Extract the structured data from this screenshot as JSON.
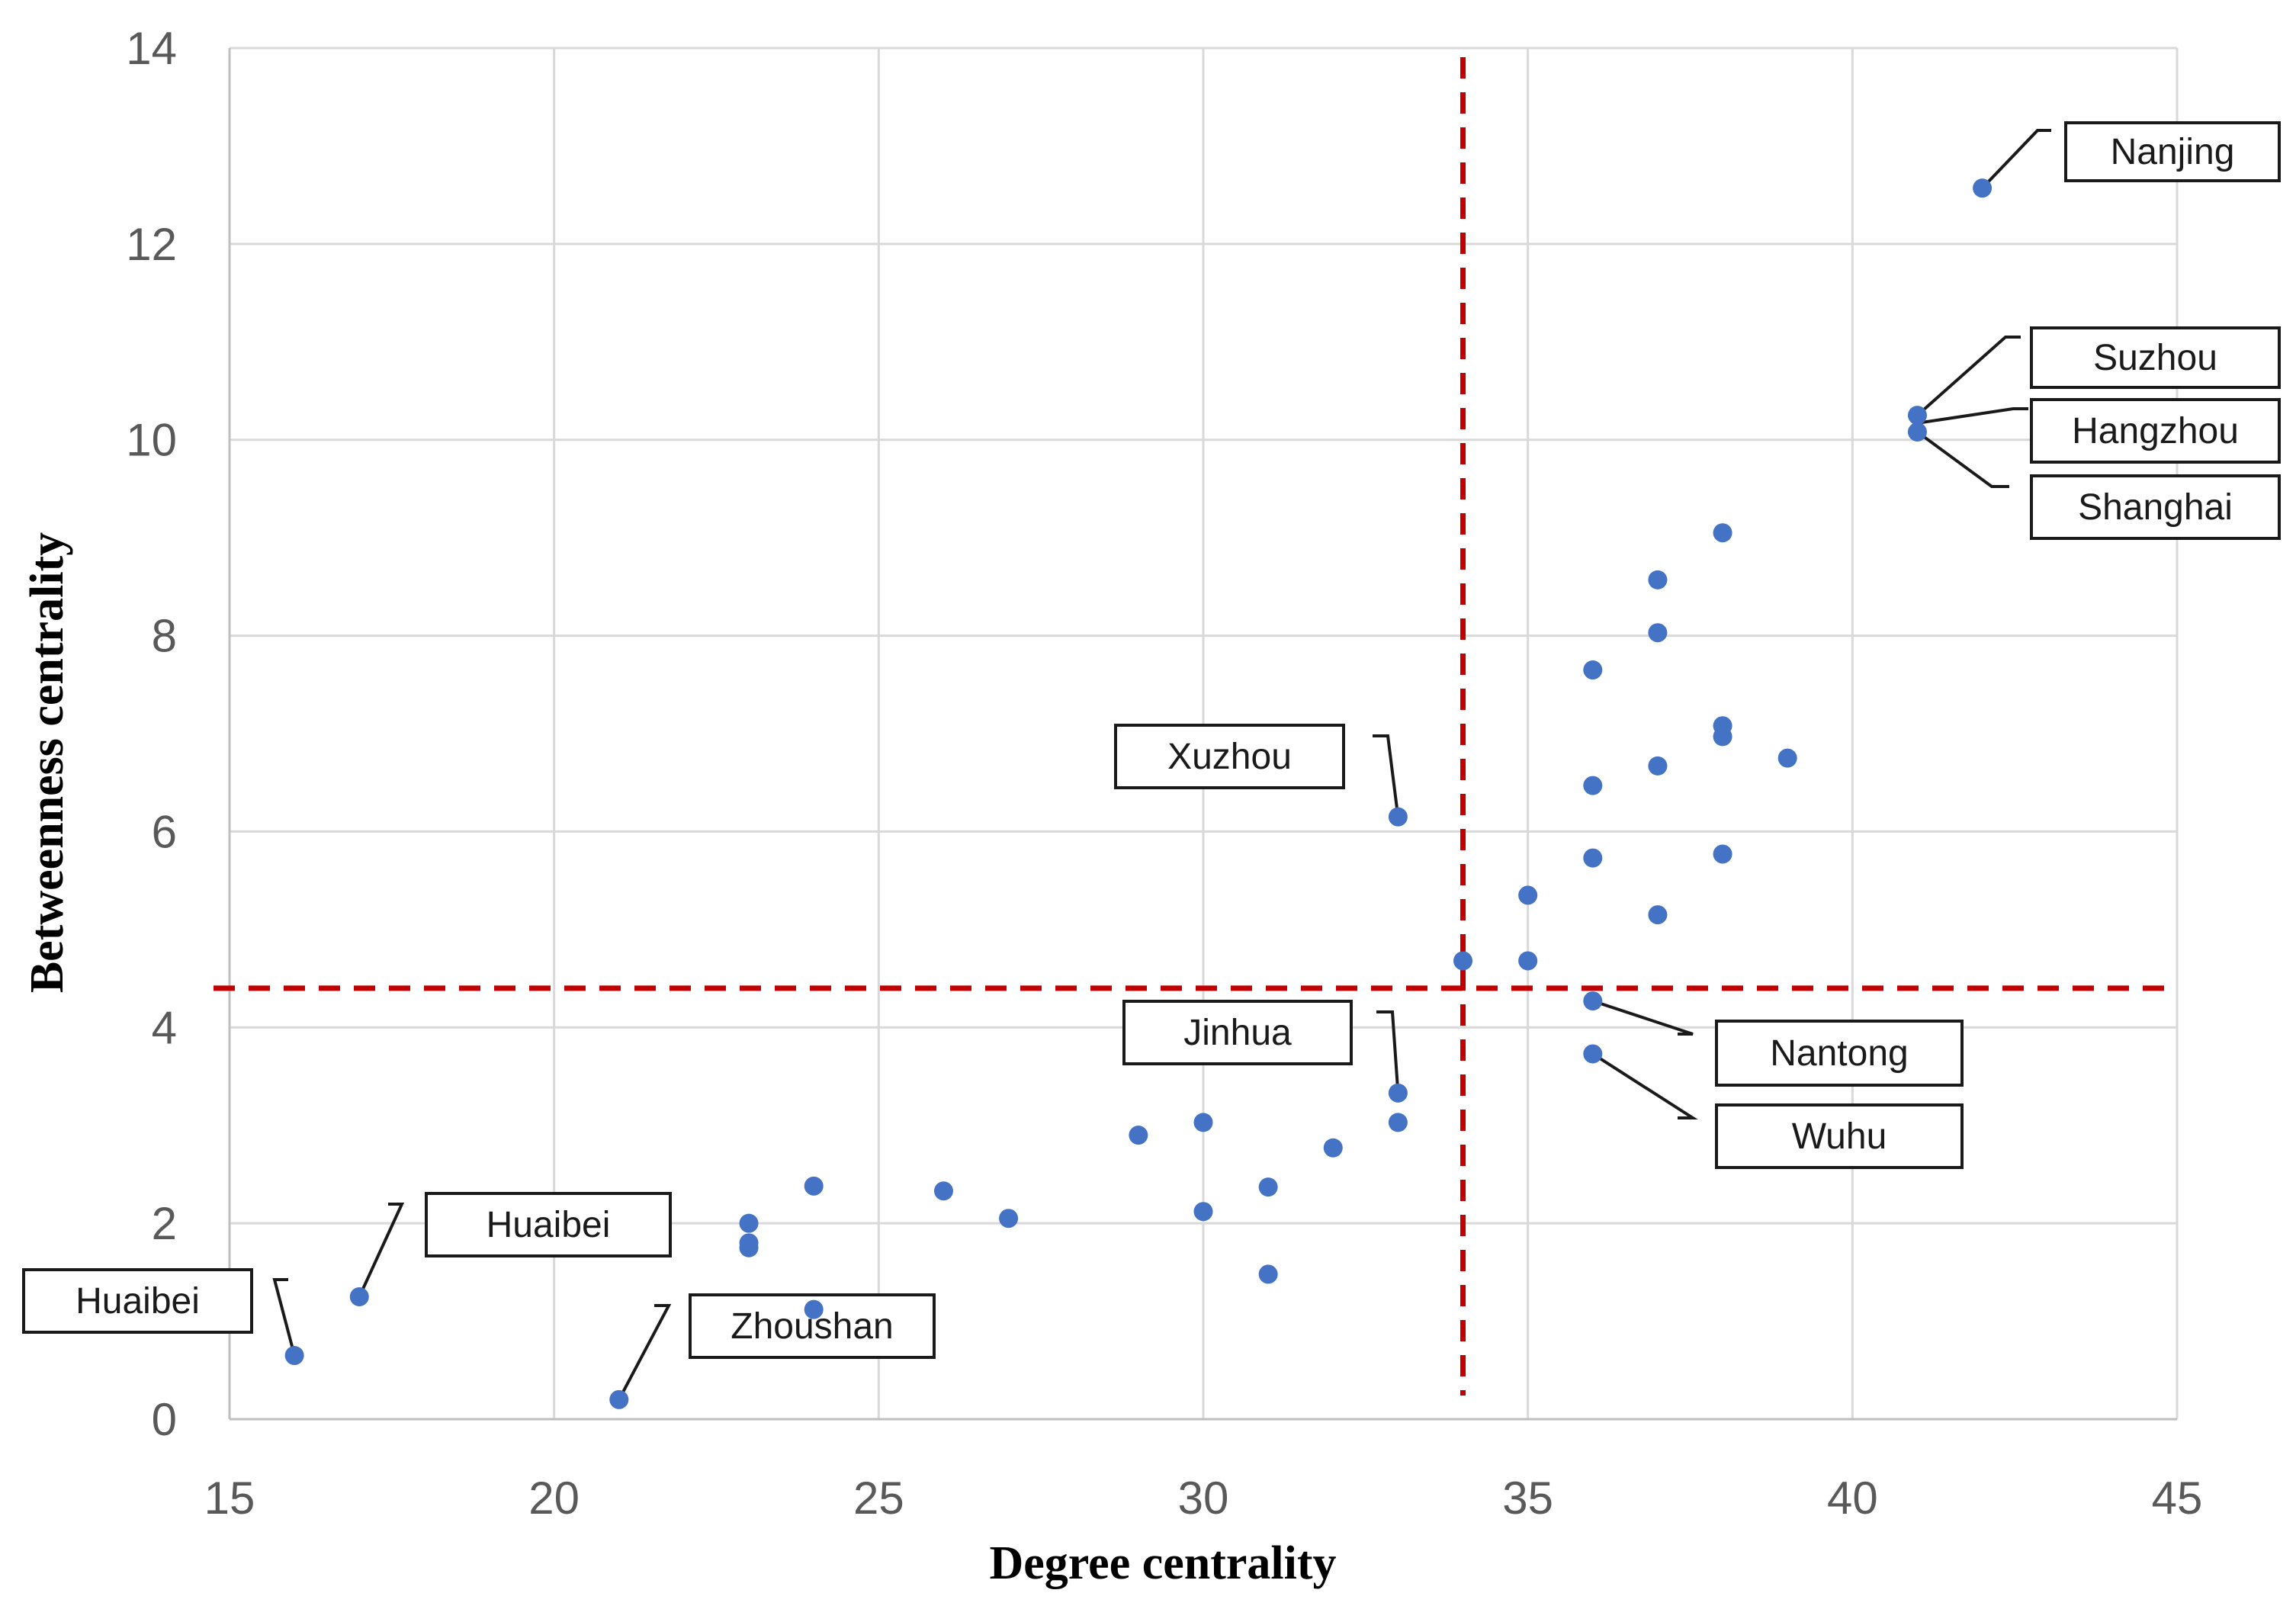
{
  "chart_data": {
    "type": "scatter",
    "title": "",
    "xlabel": "Degree centrality",
    "ylabel": "Betweenness centrality",
    "xlim": [
      15,
      45
    ],
    "ylim": [
      0,
      14
    ],
    "xticks": [
      15,
      20,
      25,
      30,
      35,
      40,
      45
    ],
    "yticks": [
      0,
      2,
      4,
      6,
      8,
      10,
      12,
      14
    ],
    "grid": true,
    "colors": {
      "points": "#4472C4",
      "reference_lines": "#C00000",
      "grid": "#D9D9D9",
      "axis": "#BFBFBF"
    },
    "reference_lines": {
      "x": 34,
      "y": 4.4
    },
    "points": [
      {
        "x": 16,
        "y": 0.65
      },
      {
        "x": 17,
        "y": 1.25
      },
      {
        "x": 21,
        "y": 0.2
      },
      {
        "x": 23,
        "y": 2.0
      },
      {
        "x": 23,
        "y": 1.8
      },
      {
        "x": 23,
        "y": 1.75
      },
      {
        "x": 24,
        "y": 2.38
      },
      {
        "x": 24,
        "y": 1.12
      },
      {
        "x": 26,
        "y": 2.33
      },
      {
        "x": 27,
        "y": 2.05
      },
      {
        "x": 29,
        "y": 2.9
      },
      {
        "x": 30,
        "y": 3.03
      },
      {
        "x": 30,
        "y": 2.12
      },
      {
        "x": 31,
        "y": 2.37
      },
      {
        "x": 31,
        "y": 1.48
      },
      {
        "x": 32,
        "y": 2.77
      },
      {
        "x": 33,
        "y": 6.15
      },
      {
        "x": 33,
        "y": 3.33
      },
      {
        "x": 33,
        "y": 3.03
      },
      {
        "x": 34,
        "y": 4.68
      },
      {
        "x": 35,
        "y": 5.35
      },
      {
        "x": 35,
        "y": 4.68
      },
      {
        "x": 36,
        "y": 7.65
      },
      {
        "x": 36,
        "y": 6.47
      },
      {
        "x": 36,
        "y": 5.73
      },
      {
        "x": 36,
        "y": 4.27
      },
      {
        "x": 36,
        "y": 3.73
      },
      {
        "x": 37,
        "y": 8.57
      },
      {
        "x": 37,
        "y": 8.03
      },
      {
        "x": 37,
        "y": 6.67
      },
      {
        "x": 37,
        "y": 5.15
      },
      {
        "x": 38,
        "y": 9.05
      },
      {
        "x": 38,
        "y": 7.08
      },
      {
        "x": 38,
        "y": 6.97
      },
      {
        "x": 38,
        "y": 5.77
      },
      {
        "x": 39,
        "y": 6.75
      },
      {
        "x": 41,
        "y": 10.25
      },
      {
        "x": 41,
        "y": 10.08
      },
      {
        "x": 42,
        "y": 12.57
      }
    ],
    "annotations": [
      {
        "label": "Nanjing",
        "x": 42,
        "y": 12.57
      },
      {
        "label": "Suzhou",
        "x": 41,
        "y": 10.25
      },
      {
        "label": "Hangzhou",
        "x": 41,
        "y": 10.17
      },
      {
        "label": "Shanghai",
        "x": 41,
        "y": 10.08
      },
      {
        "label": "Xuzhou",
        "x": 33,
        "y": 6.15
      },
      {
        "label": "Jinhua",
        "x": 33,
        "y": 3.33
      },
      {
        "label": "Nantong",
        "x": 36,
        "y": 4.27
      },
      {
        "label": "Wuhu",
        "x": 36,
        "y": 3.73
      },
      {
        "label": "Huaibei",
        "x": 17,
        "y": 1.25
      },
      {
        "label": "Huaibei",
        "x": 16,
        "y": 0.65
      },
      {
        "label": "Zhoushan",
        "x": 21,
        "y": 0.2
      }
    ]
  }
}
